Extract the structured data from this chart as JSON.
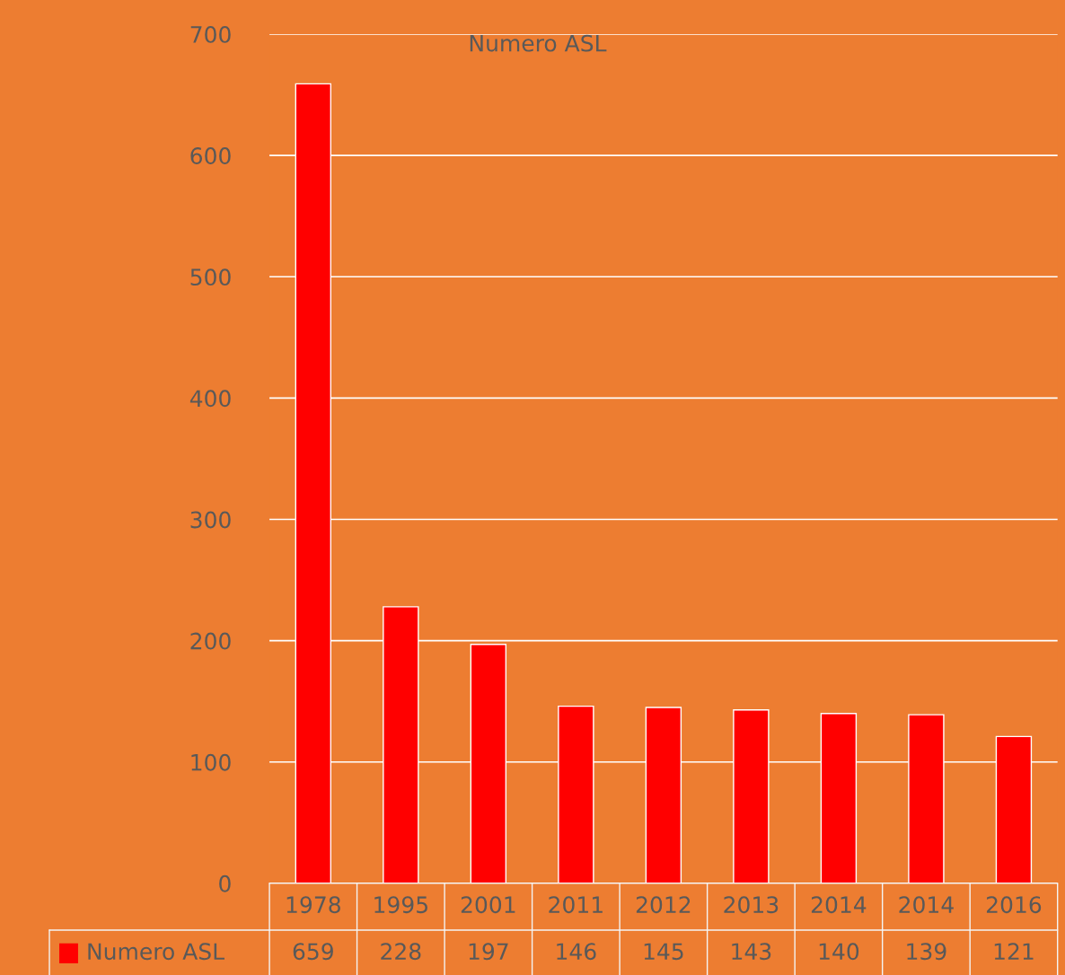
{
  "chart_data": {
    "type": "bar",
    "title": "Numero ASL",
    "categories": [
      "1978",
      "1995",
      "2001",
      "2011",
      "2012",
      "2013",
      "2014",
      "2014",
      "2016"
    ],
    "series": [
      {
        "name": "Numero ASL",
        "color": "#ff0000",
        "values": [
          659,
          228,
          197,
          146,
          145,
          143,
          140,
          139,
          121
        ]
      }
    ],
    "ylim": [
      0,
      700
    ],
    "yticks": [
      0,
      100,
      200,
      300,
      400,
      500,
      600,
      700
    ],
    "grid": "y",
    "data_labels": true,
    "legend": "bottom"
  }
}
